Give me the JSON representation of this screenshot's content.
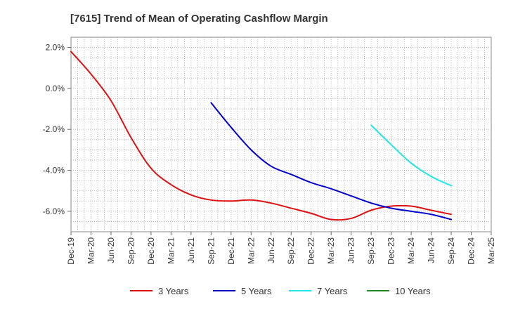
{
  "chart_data": {
    "type": "line",
    "title": "[7615]  Trend of Mean of Operating Cashflow Margin",
    "xlabel": "",
    "ylabel": "",
    "ylim": [
      -7.0,
      2.5
    ],
    "yticks": [
      2.0,
      0.0,
      -2.0,
      -4.0,
      -6.0
    ],
    "ytick_labels": [
      "2.0%",
      "0.0%",
      "-2.0%",
      "-4.0%",
      "-6.0%"
    ],
    "categories": [
      "Dec-19",
      "Mar-20",
      "Jun-20",
      "Sep-20",
      "Dec-20",
      "Mar-21",
      "Jun-21",
      "Sep-21",
      "Dec-21",
      "Mar-22",
      "Jun-22",
      "Sep-22",
      "Dec-22",
      "Mar-23",
      "Jun-23",
      "Sep-23",
      "Dec-23",
      "Mar-24",
      "Jun-24",
      "Sep-24",
      "Dec-24",
      "Mar-25"
    ],
    "grid": true,
    "legend_position": "bottom",
    "series": [
      {
        "name": "3 Years",
        "color": "#dd1111",
        "values": [
          1.8,
          0.7,
          -0.6,
          -2.4,
          -3.9,
          -4.7,
          -5.2,
          -5.45,
          -5.5,
          -5.45,
          -5.6,
          -5.85,
          -6.1,
          -6.4,
          -6.35,
          -5.95,
          -5.75,
          -5.75,
          -5.95,
          -6.15,
          null,
          null
        ]
      },
      {
        "name": "5 Years",
        "color": "#0000cc",
        "values": [
          null,
          null,
          null,
          null,
          null,
          null,
          null,
          -0.7,
          -1.9,
          -3.0,
          -3.8,
          -4.2,
          -4.6,
          -4.9,
          -5.25,
          -5.6,
          -5.85,
          -6.0,
          -6.15,
          -6.4,
          null,
          null
        ]
      },
      {
        "name": "7 Years",
        "color": "#22e6e6",
        "values": [
          null,
          null,
          null,
          null,
          null,
          null,
          null,
          null,
          null,
          null,
          null,
          null,
          null,
          null,
          null,
          -1.8,
          -2.75,
          -3.65,
          -4.3,
          -4.75,
          null,
          null
        ]
      },
      {
        "name": "10 Years",
        "color": "#228822",
        "values": [
          null,
          null,
          null,
          null,
          null,
          null,
          null,
          null,
          null,
          null,
          null,
          null,
          null,
          null,
          null,
          null,
          null,
          null,
          null,
          null,
          null,
          null
        ]
      }
    ]
  }
}
